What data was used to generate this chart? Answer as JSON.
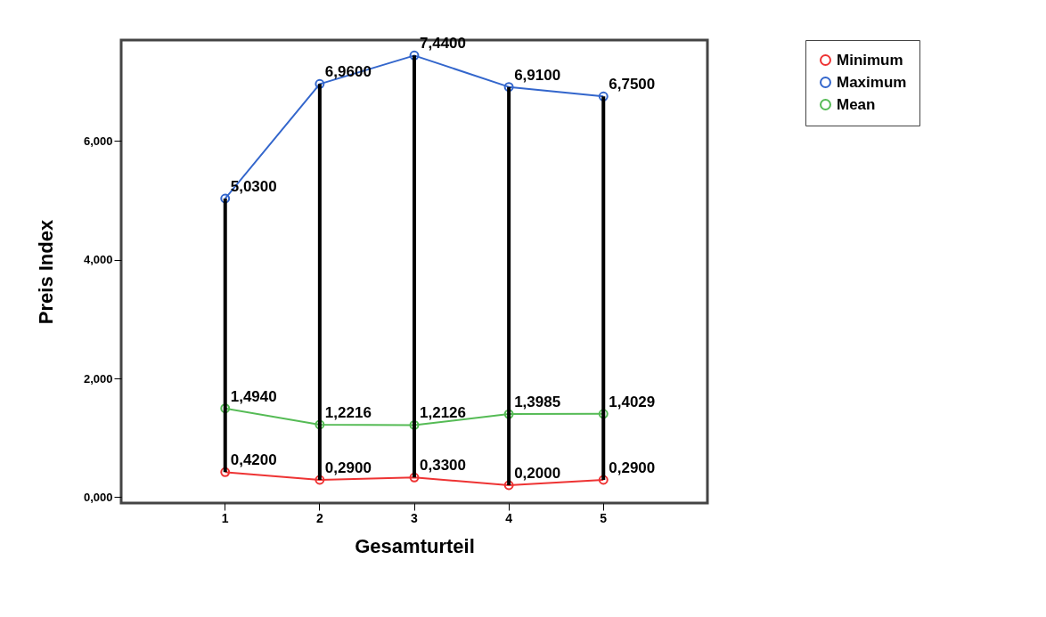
{
  "chart_data": {
    "type": "line",
    "xlabel": "Gesamturteil",
    "ylabel": "Preis Index",
    "categories": [
      "1",
      "2",
      "3",
      "4",
      "5"
    ],
    "series": [
      {
        "name": "Minimum",
        "color": "#ee3333",
        "values": [
          0.42,
          0.29,
          0.33,
          0.2,
          0.29
        ],
        "value_labels": [
          "0,4200",
          "0,2900",
          "0,3300",
          "0,2000",
          "0,2900"
        ]
      },
      {
        "name": "Maximum",
        "color": "#3366cc",
        "values": [
          5.03,
          6.96,
          7.44,
          6.91,
          6.75
        ],
        "value_labels": [
          "5,0300",
          "6,9600",
          "7,4400",
          "6,9100",
          "6,7500"
        ]
      },
      {
        "name": "Mean",
        "color": "#55bb55",
        "values": [
          1.494,
          1.2216,
          1.2126,
          1.3985,
          1.4029
        ],
        "value_labels": [
          "1,4940",
          "1,2216",
          "1,2126",
          "1,3985",
          "1,4029"
        ]
      },
      {
        "type": "bar",
        "color": "#000000",
        "base": [
          0.42,
          0.29,
          0.33,
          0.2,
          0.29
        ],
        "values": [
          4.61,
          6.67,
          7.11,
          6.71,
          6.46
        ]
      }
    ],
    "ylim": [
      -0.1,
      7.7
    ],
    "yticks": [
      {
        "value": 0,
        "label": "0,000"
      },
      {
        "value": 2,
        "label": "2,000"
      },
      {
        "value": 4,
        "label": "4,000"
      },
      {
        "value": 6,
        "label": "6,000"
      }
    ],
    "grid": false,
    "legend": "top right",
    "marker": "circle",
    "line_style": "solid"
  }
}
